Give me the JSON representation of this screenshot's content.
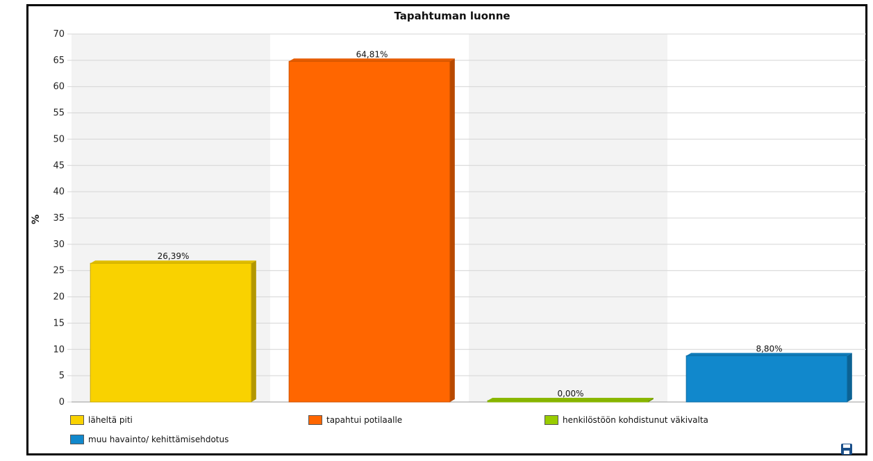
{
  "chart_data": {
    "type": "bar",
    "title": "Tapahtuman luonne",
    "ylabel": "%",
    "xlabel": "",
    "ylim": [
      0,
      70
    ],
    "yticks": [
      0,
      5,
      10,
      15,
      20,
      25,
      30,
      35,
      40,
      45,
      50,
      55,
      60,
      65,
      70
    ],
    "categories": [
      "läheltä piti",
      "tapahtui potilaalle",
      "henkilöstöön kohdistunut väkivalta",
      "muu havainto/ kehittämisehdotus"
    ],
    "values": [
      26.39,
      64.81,
      0.0,
      8.8
    ],
    "data_labels": [
      "26,39%",
      "64,81%",
      "0,00%",
      "8,80%"
    ],
    "colors": [
      "#f9d200",
      "#ff6600",
      "#99cc00",
      "#1188cc"
    ],
    "grid": true,
    "legend_position": "bottom"
  },
  "icons": {
    "save": "save-icon"
  }
}
